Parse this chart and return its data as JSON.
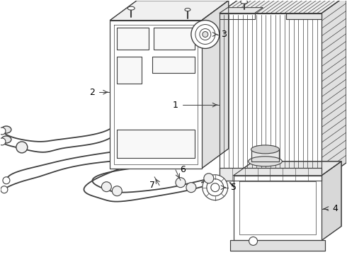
{
  "background_color": "#ffffff",
  "line_color": "#404040",
  "label_color": "#000000",
  "label_fontsize": 9,
  "fig_width": 4.9,
  "fig_height": 3.6,
  "dpi": 100
}
